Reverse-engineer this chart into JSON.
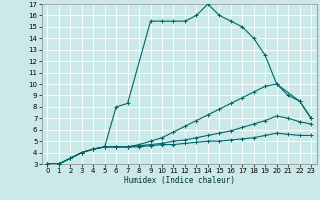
{
  "background_color": "#cce9e9",
  "grid_color": "#ffffff",
  "line_color": "#006666",
  "xlabel": "Humidex (Indice chaleur)",
  "xlim": [
    -0.5,
    23.5
  ],
  "ylim": [
    3,
    17
  ],
  "xticks": [
    0,
    1,
    2,
    3,
    4,
    5,
    6,
    7,
    8,
    9,
    10,
    11,
    12,
    13,
    14,
    15,
    16,
    17,
    18,
    19,
    20,
    21,
    22,
    23
  ],
  "yticks": [
    3,
    4,
    5,
    6,
    7,
    8,
    9,
    10,
    11,
    12,
    13,
    14,
    15,
    16,
    17
  ],
  "series": [
    {
      "x": [
        0,
        1,
        2,
        3,
        4,
        5,
        6,
        7,
        9,
        10,
        11,
        12,
        13,
        14,
        15,
        16,
        17,
        18,
        19,
        20,
        22,
        23
      ],
      "y": [
        3,
        3,
        3.5,
        4,
        4.3,
        4.5,
        8.0,
        8.3,
        15.5,
        15.5,
        15.5,
        15.5,
        16.0,
        17,
        16,
        15.5,
        15.0,
        14.0,
        12.5,
        10.0,
        8.5,
        7.0
      ]
    },
    {
      "x": [
        0,
        1,
        2,
        3,
        4,
        5,
        6,
        7,
        8,
        9,
        10,
        11,
        12,
        13,
        14,
        15,
        16,
        17,
        18,
        19,
        20,
        21,
        22,
        23
      ],
      "y": [
        3,
        3,
        3.5,
        4,
        4.3,
        4.5,
        4.5,
        4.5,
        4.7,
        5.0,
        5.3,
        5.8,
        6.3,
        6.8,
        7.3,
        7.8,
        8.3,
        8.8,
        9.3,
        9.8,
        10.0,
        9.0,
        8.5,
        7.0
      ]
    },
    {
      "x": [
        0,
        1,
        2,
        3,
        4,
        5,
        6,
        7,
        8,
        9,
        10,
        11,
        12,
        13,
        14,
        15,
        16,
        17,
        18,
        19,
        20,
        21,
        22,
        23
      ],
      "y": [
        3,
        3,
        3.5,
        4,
        4.3,
        4.5,
        4.5,
        4.5,
        4.6,
        4.7,
        4.8,
        5.0,
        5.1,
        5.3,
        5.5,
        5.7,
        5.9,
        6.2,
        6.5,
        6.8,
        7.2,
        7.0,
        6.7,
        6.5
      ]
    },
    {
      "x": [
        0,
        1,
        2,
        3,
        4,
        5,
        6,
        7,
        8,
        9,
        10,
        11,
        12,
        13,
        14,
        15,
        16,
        17,
        18,
        19,
        20,
        21,
        22,
        23
      ],
      "y": [
        3,
        3,
        3.5,
        4,
        4.3,
        4.5,
        4.5,
        4.5,
        4.5,
        4.6,
        4.7,
        4.7,
        4.8,
        4.9,
        5.0,
        5.0,
        5.1,
        5.2,
        5.3,
        5.5,
        5.7,
        5.6,
        5.5,
        5.5
      ]
    }
  ]
}
